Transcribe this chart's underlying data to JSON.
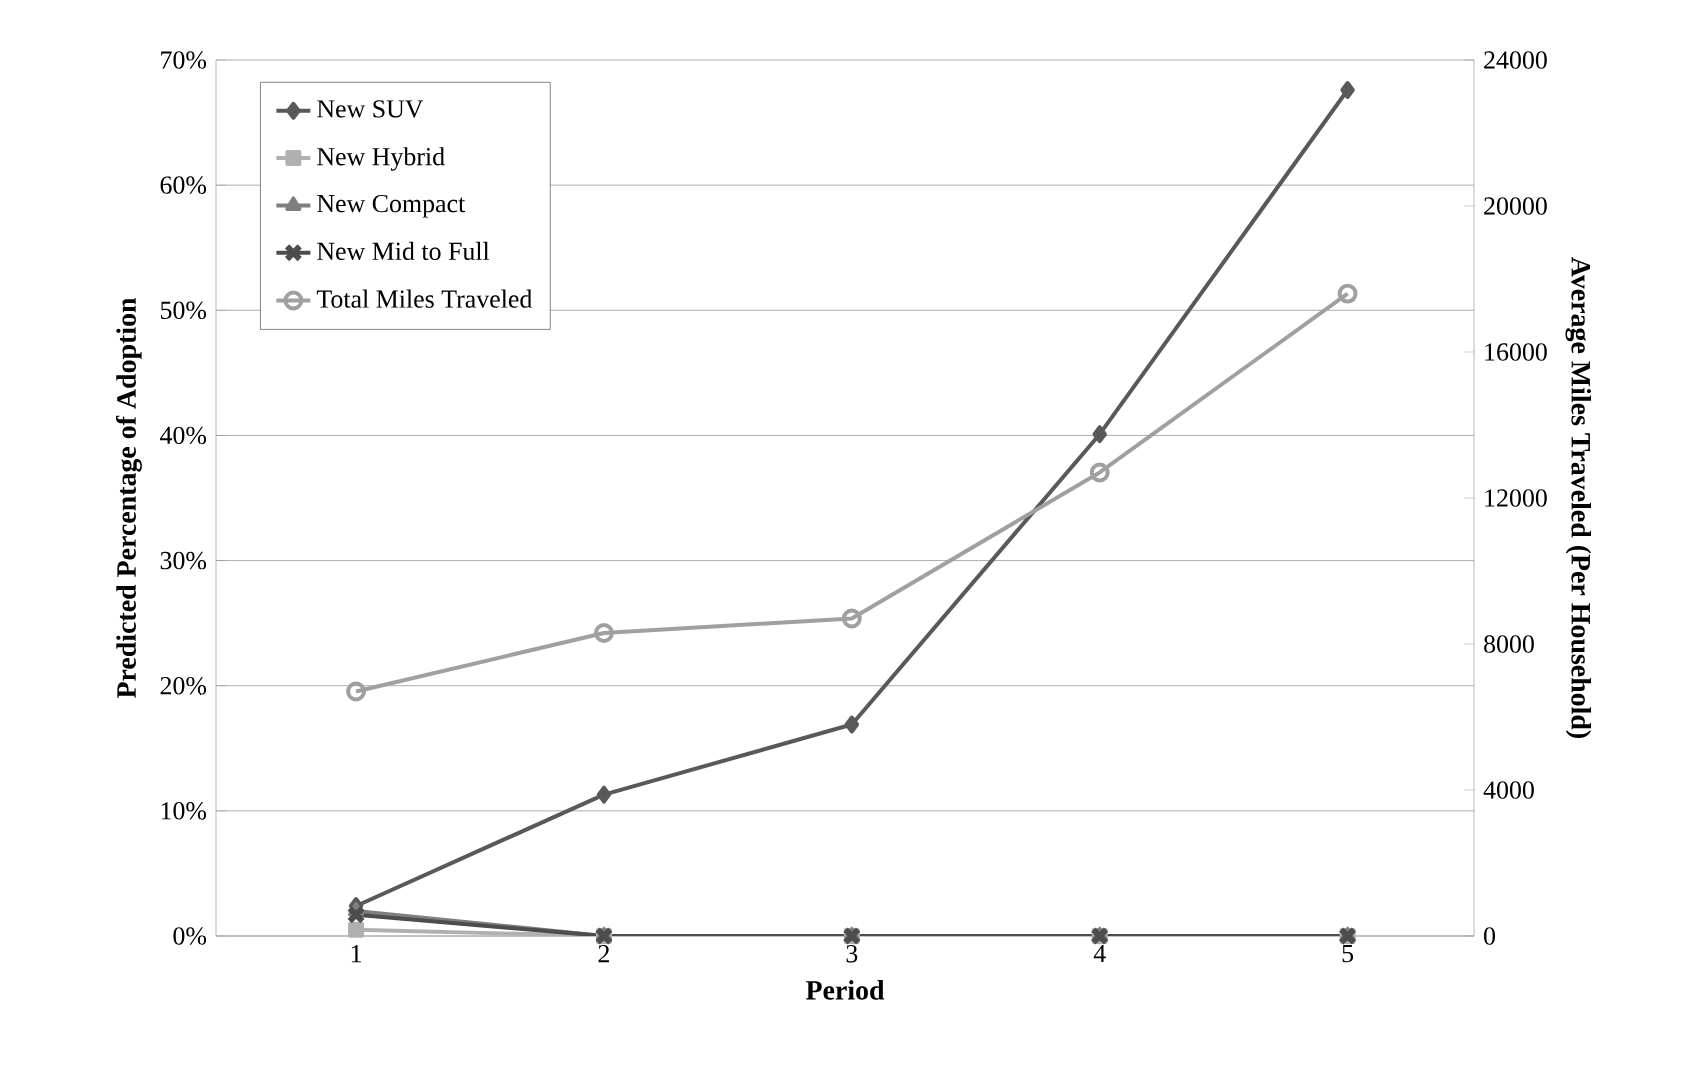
{
  "chart_data": {
    "type": "line",
    "xlabel": "Period",
    "ylabel": "Predicted Percentage of Adoption",
    "y2label": "Average Miles Traveled (Per Household)",
    "categories": [
      "1",
      "2",
      "3",
      "4",
      "5"
    ],
    "series": [
      {
        "name": "New SUV",
        "color": "#595959",
        "marker": "diamond",
        "values": [
          2.4,
          11.3,
          16.9,
          40.1,
          67.6
        ]
      },
      {
        "name": "New Hybrid",
        "color": "#b0b0b0",
        "marker": "square",
        "values": [
          0.5,
          0,
          0,
          0,
          0
        ]
      },
      {
        "name": "New Compact",
        "color": "#7f7f7f",
        "marker": "triangle",
        "values": [
          2.0,
          0,
          0,
          0,
          0
        ]
      },
      {
        "name": "New Mid to Full",
        "color": "#4d4d4d",
        "marker": "cross",
        "values": [
          1.7,
          0,
          0,
          0,
          0
        ]
      },
      {
        "name": "Total Miles Traveled",
        "color": "#a0a0a0",
        "marker": "circle",
        "axis": "y2",
        "values": [
          6700,
          8300,
          8700,
          12700,
          17600
        ]
      }
    ],
    "ylim": [
      0,
      70
    ],
    "yticks": [
      {
        "value": 0,
        "label": "0%"
      },
      {
        "value": 10,
        "label": "10%"
      },
      {
        "value": 20,
        "label": "20%"
      },
      {
        "value": 30,
        "label": "30%"
      },
      {
        "value": 40,
        "label": "40%"
      },
      {
        "value": 50,
        "label": "50%"
      },
      {
        "value": 60,
        "label": "60%"
      },
      {
        "value": 70,
        "label": "70%"
      }
    ],
    "y2lim": [
      0,
      24000
    ],
    "y2ticks": [
      0,
      4000,
      8000,
      12000,
      16000,
      20000,
      24000
    ],
    "grid": "y",
    "legend": "top left",
    "line_style": "solid"
  }
}
